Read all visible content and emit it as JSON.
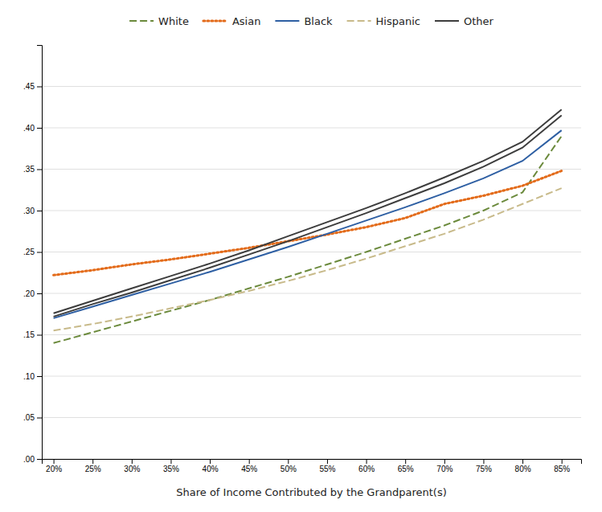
{
  "chart_data": {
    "type": "line",
    "xlabel": "Share of Income Contributed by the Grandparent(s)",
    "x": [
      0.2,
      0.25,
      0.3,
      0.35,
      0.4,
      0.45,
      0.5,
      0.55,
      0.6,
      0.65,
      0.7,
      0.75,
      0.8,
      0.85
    ],
    "series": [
      {
        "name": "White",
        "color": "#6b8a3c",
        "line_style": "dashed",
        "values": [
          0.14,
          0.153,
          0.166,
          0.179,
          0.192,
          0.206,
          0.22,
          0.235,
          0.25,
          0.266,
          0.282,
          0.3,
          0.322,
          0.39
        ]
      },
      {
        "name": "Asian",
        "color": "#e36b1a",
        "line_style": "dotted",
        "values": [
          0.222,
          0.228,
          0.235,
          0.241,
          0.248,
          0.255,
          0.263,
          0.271,
          0.28,
          0.291,
          0.308,
          0.318,
          0.33,
          0.348
        ]
      },
      {
        "name": "Black",
        "color": "#2e5fa3",
        "line_style": "solid",
        "values": [
          0.17,
          0.184,
          0.198,
          0.212,
          0.226,
          0.241,
          0.256,
          0.272,
          0.288,
          0.304,
          0.321,
          0.339,
          0.36,
          0.397
        ]
      },
      {
        "name": "Hispanic",
        "color": "#c8ba8a",
        "line_style": "dashed",
        "values": [
          0.155,
          0.163,
          0.172,
          0.182,
          0.192,
          0.203,
          0.215,
          0.228,
          0.242,
          0.257,
          0.272,
          0.289,
          0.308,
          0.327
        ]
      },
      {
        "name": "Other",
        "color": "#3d3d3d",
        "line_style": "solid",
        "values": [
          0.172,
          0.187,
          0.201,
          0.216,
          0.231,
          0.247,
          0.263,
          0.28,
          0.297,
          0.315,
          0.333,
          0.353,
          0.376,
          0.415
        ]
      },
      {
        "name": "Other",
        "color": "#3d3d3d",
        "line_style": "solid",
        "values": [
          0.176,
          0.191,
          0.206,
          0.221,
          0.236,
          0.252,
          0.269,
          0.286,
          0.303,
          0.321,
          0.34,
          0.36,
          0.383,
          0.422
        ]
      }
    ],
    "xlim": [
      0.185,
      0.875
    ],
    "xticks": [
      {
        "value": 0.2,
        "label": "20%"
      },
      {
        "value": 0.25,
        "label": "25%"
      },
      {
        "value": 0.3,
        "label": "30%"
      },
      {
        "value": 0.35,
        "label": "35%"
      },
      {
        "value": 0.4,
        "label": "40%"
      },
      {
        "value": 0.45,
        "label": "45%"
      },
      {
        "value": 0.5,
        "label": "50%"
      },
      {
        "value": 0.55,
        "label": "55%"
      },
      {
        "value": 0.6,
        "label": "60%"
      },
      {
        "value": 0.65,
        "label": "65%"
      },
      {
        "value": 0.7,
        "label": "70%"
      },
      {
        "value": 0.75,
        "label": "75%"
      },
      {
        "value": 0.8,
        "label": "80%"
      },
      {
        "value": 0.85,
        "label": "85%"
      }
    ],
    "ylim": [
      0.0,
      0.5
    ],
    "yticks": [
      {
        "value": 0.0,
        "label": ".00"
      },
      {
        "value": 0.05,
        "label": ".05"
      },
      {
        "value": 0.1,
        "label": ".10"
      },
      {
        "value": 0.15,
        "label": ".15"
      },
      {
        "value": 0.2,
        "label": ".20"
      },
      {
        "value": 0.25,
        "label": ".25"
      },
      {
        "value": 0.3,
        "label": ".30"
      },
      {
        "value": 0.35,
        "label": ".35"
      },
      {
        "value": 0.4,
        "label": ".40"
      },
      {
        "value": 0.45,
        "label": ".45"
      }
    ],
    "grid": true,
    "legend": "top"
  }
}
